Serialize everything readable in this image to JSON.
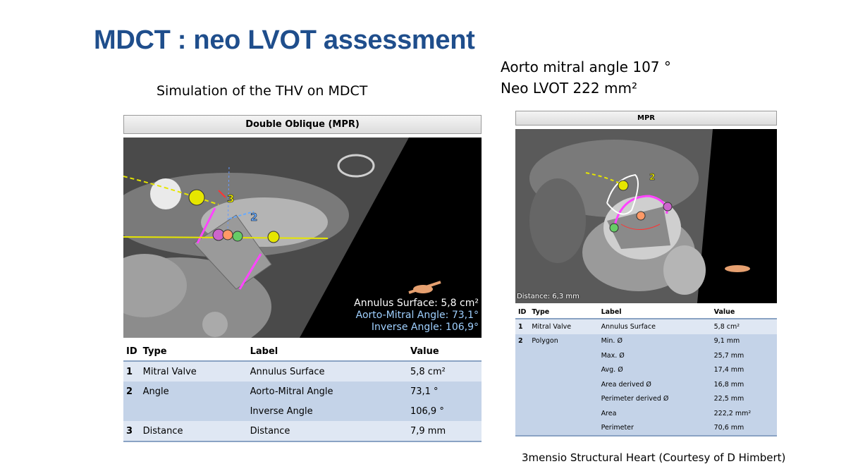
{
  "slide": {
    "title": "MDCT : neo LVOT assessment",
    "subtitle_left": "Simulation of the THV on MDCT",
    "subtitle_right_line1": "Aorto mitral angle 107 °",
    "subtitle_right_line2": "Neo LVOT  222 mm²",
    "footer": "3mensio Structural Heart (Courtesy of D Himbert)"
  },
  "left_panel": {
    "header": "Double Oblique (MPR)",
    "label_3": "3",
    "label_2": "2",
    "overlay": {
      "annulus": "Annulus Surface: 5,8 cm²",
      "aorto": "Aorto-Mitral Angle: 73,1°",
      "inverse": "Inverse Angle: 106,9°"
    },
    "table": {
      "headers": {
        "id": "ID",
        "type": "Type",
        "label": "Label",
        "value": "Value"
      },
      "rows": [
        {
          "id": "1",
          "type": "Mitral Valve",
          "label": "Annulus Surface",
          "value": "5,8 cm²"
        },
        {
          "id": "2",
          "type": "Angle",
          "label": "Aorto-Mitral Angle",
          "value": "73,1 °"
        },
        {
          "id": "",
          "type": "",
          "label": "Inverse Angle",
          "value": "106,9 °"
        },
        {
          "id": "3",
          "type": "Distance",
          "label": "Distance",
          "value": "7,9 mm"
        }
      ]
    }
  },
  "right_panel": {
    "header": "MPR",
    "label_2": "2",
    "overlay_distance": "Distance: 6,3 mm",
    "table": {
      "headers": {
        "id": "ID",
        "type": "Type",
        "label": "Label",
        "value": "Value"
      },
      "rows": [
        {
          "id": "1",
          "type": "Mitral Valve",
          "label": "Annulus Surface",
          "value": "5,8 cm²"
        },
        {
          "id": "2",
          "type": "Polygon",
          "label": "Min. Ø",
          "value": "9,1 mm"
        },
        {
          "id": "",
          "type": "",
          "label": "Max. Ø",
          "value": "25,7 mm"
        },
        {
          "id": "",
          "type": "",
          "label": "Avg. Ø",
          "value": "17,4 mm"
        },
        {
          "id": "",
          "type": "",
          "label": "Area derived Ø",
          "value": "16,8 mm"
        },
        {
          "id": "",
          "type": "",
          "label": "Perimeter derived Ø",
          "value": "22,5 mm"
        },
        {
          "id": "",
          "type": "",
          "label": "Area",
          "value": "222,2 mm²"
        },
        {
          "id": "",
          "type": "",
          "label": "Perimeter",
          "value": "70,6 mm"
        }
      ]
    }
  }
}
